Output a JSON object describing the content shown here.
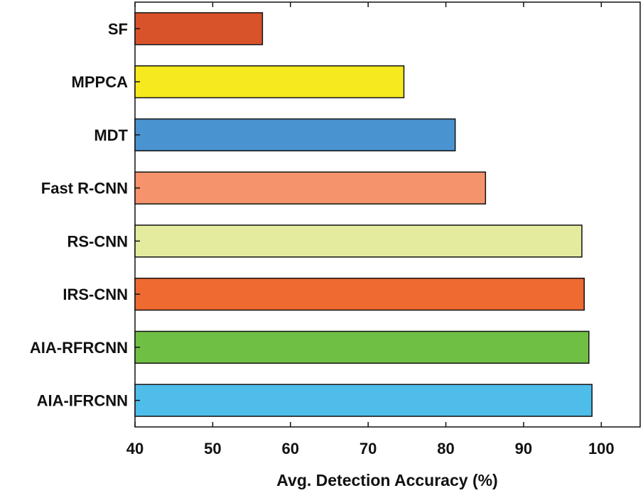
{
  "chart_data": {
    "type": "bar",
    "orientation": "horizontal",
    "title": "",
    "xlabel": "Avg. Detection Accuracy (%)",
    "ylabel": "",
    "xlim": [
      40,
      105
    ],
    "xticks": [
      40,
      50,
      60,
      70,
      80,
      90,
      100
    ],
    "grid": false,
    "categories": [
      "SF",
      "MPPCA",
      "MDT",
      "Fast R-CNN",
      "RS-CNN",
      "IRS-CNN",
      "AIA-RFRCNN",
      "AIA-IFRCNN"
    ],
    "values": [
      56.4,
      74.6,
      81.2,
      85.1,
      97.5,
      97.8,
      98.4,
      98.8
    ],
    "colors": [
      "#d9532a",
      "#f6ea1f",
      "#4a93d1",
      "#f4936c",
      "#e4eb9e",
      "#ee6a30",
      "#70bf45",
      "#4fbdea"
    ]
  }
}
